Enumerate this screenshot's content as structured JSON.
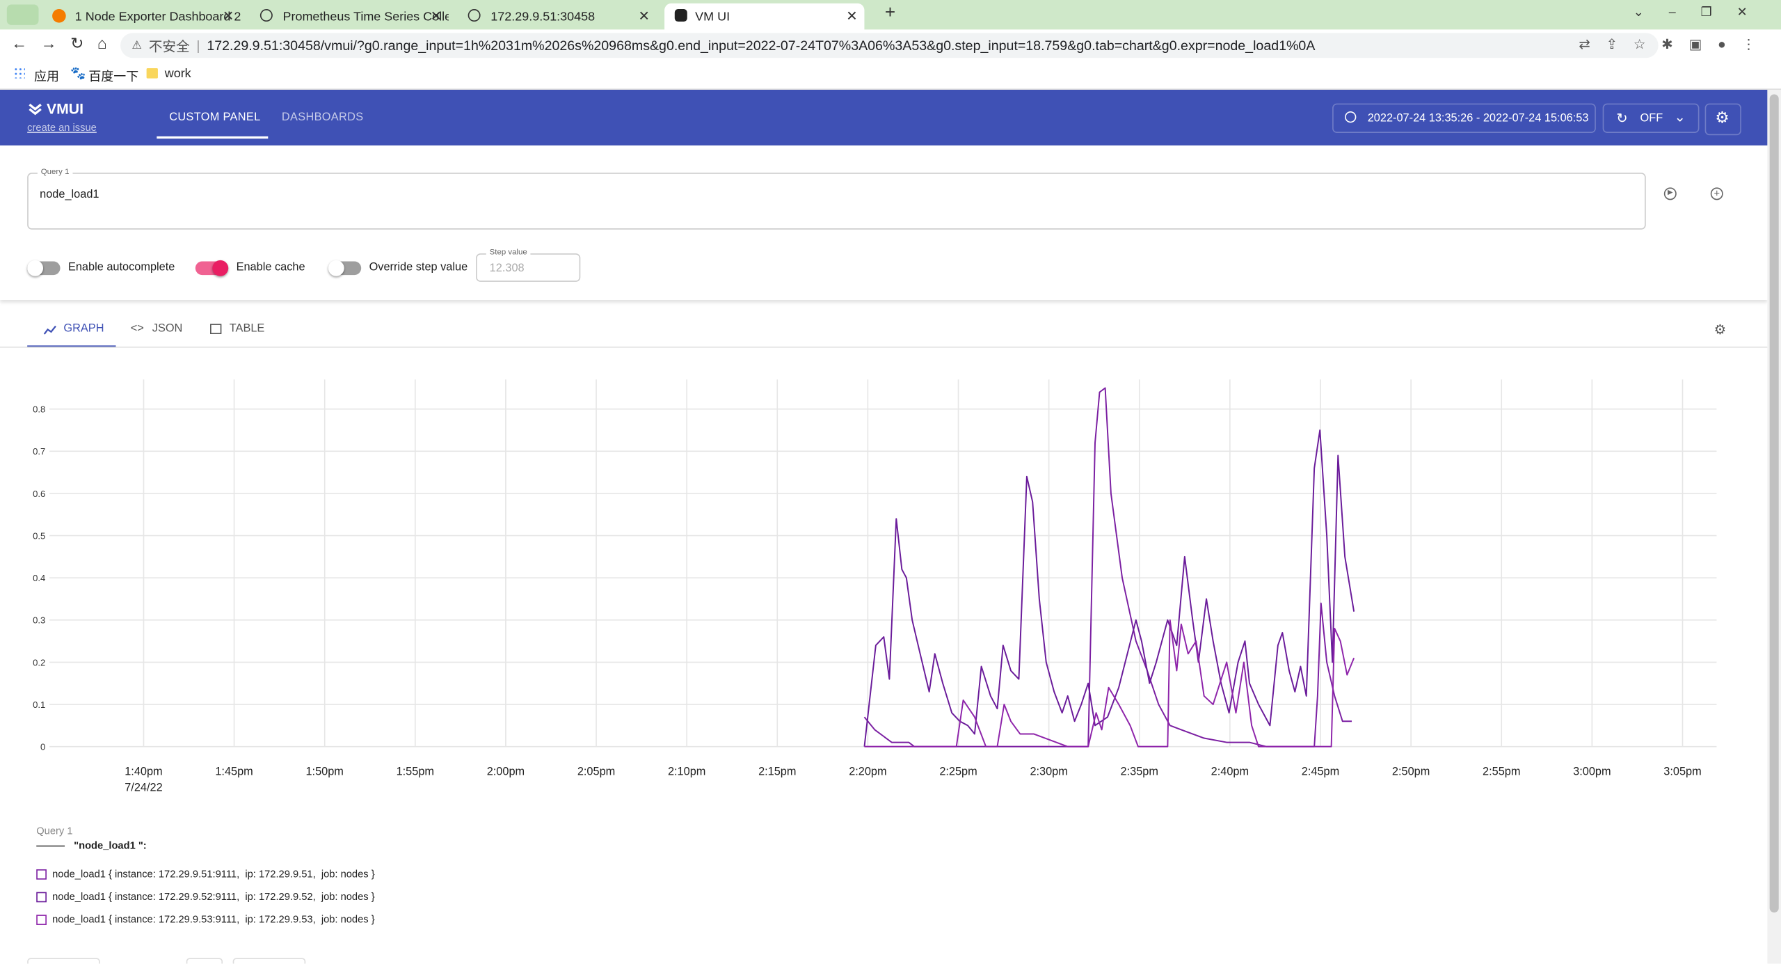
{
  "browser": {
    "tabs": [
      "1 Node Exporter Dashboard 2",
      "Prometheus Time Series Colle",
      "172.29.9.51:30458",
      "VM UI"
    ],
    "security": "不安全",
    "url": "172.29.9.51:30458/vmui/?g0.range_input=1h%2031m%2026s%20968ms&g0.end_input=2022-07-24T07%3A06%3A53&g0.step_input=18.759&g0.tab=chart&g0.expr=node_load1%0A",
    "bookmarks": [
      "应用",
      "百度一下",
      "work"
    ]
  },
  "app": {
    "logo": "VMUI",
    "issue_link": "create an issue",
    "nav": [
      "CUSTOM PANEL",
      "DASHBOARDS"
    ],
    "time_range": "2022-07-24 13:35:26 - 2022-07-24 15:06:53",
    "refresh": "OFF"
  },
  "query": {
    "label": "Query 1",
    "value": "node_load1",
    "toggles": [
      "Enable autocomplete",
      "Enable cache",
      "Override step value"
    ],
    "step_label": "Step value",
    "step_value": "12.308"
  },
  "view_tabs": [
    "GRAPH",
    "JSON",
    "TABLE"
  ],
  "legend": {
    "group": "Query 1",
    "query_label": "\"node_load1 \":"
  },
  "chart_data": {
    "type": "line",
    "x_date_label": "7/24/22",
    "xlim": [
      815.43,
      906.88
    ],
    "xticks": [
      {
        "value": 820,
        "label": "1:40pm"
      },
      {
        "value": 825,
        "label": "1:45pm"
      },
      {
        "value": 830,
        "label": "1:50pm"
      },
      {
        "value": 835,
        "label": "1:55pm"
      },
      {
        "value": 840,
        "label": "2:00pm"
      },
      {
        "value": 845,
        "label": "2:05pm"
      },
      {
        "value": 850,
        "label": "2:10pm"
      },
      {
        "value": 855,
        "label": "2:15pm"
      },
      {
        "value": 860,
        "label": "2:20pm"
      },
      {
        "value": 865,
        "label": "2:25pm"
      },
      {
        "value": 870,
        "label": "2:30pm"
      },
      {
        "value": 875,
        "label": "2:35pm"
      },
      {
        "value": 880,
        "label": "2:40pm"
      },
      {
        "value": 885,
        "label": "2:45pm"
      },
      {
        "value": 890,
        "label": "2:50pm"
      },
      {
        "value": 895,
        "label": "2:55pm"
      },
      {
        "value": 900,
        "label": "3:00pm"
      },
      {
        "value": 905,
        "label": "3:05pm"
      }
    ],
    "ylim": [
      0,
      0.87
    ],
    "yticks": [
      0,
      0.1,
      0.2,
      0.3,
      0.4,
      0.5,
      0.6,
      0.7,
      0.8
    ],
    "grid": true,
    "series": [
      {
        "name": "node_load1 { instance: 172.29.9.51:9111,  ip: 172.29.9.51,  job: nodes }",
        "color": "#7b1fa2",
        "x": [
          859.81,
          860.38,
          861.32,
          862.26,
          862.57,
          872.17,
          872.55,
          872.8,
          873.11,
          873.43,
          874.05,
          874.81,
          875.43,
          876.06,
          876.69,
          877.31,
          878.57,
          879.82,
          881.08,
          882.02,
          884.66,
          884.84,
          885.03,
          885.35,
          885.78,
          886.22,
          886.73
        ],
        "values": [
          0.07,
          0.04,
          0.01,
          0.01,
          0,
          0,
          0.72,
          0.84,
          0.85,
          0.6,
          0.4,
          0.25,
          0.18,
          0.1,
          0.05,
          0.04,
          0.02,
          0.01,
          0.01,
          0,
          0,
          0.12,
          0.34,
          0.2,
          0.12,
          0.06,
          0.06
        ]
      },
      {
        "name": "node_load1 { instance: 172.29.9.52:9111,  ip: 172.29.9.52,  job: nodes }",
        "color": "#6a1b9a",
        "x": [
          859.81,
          860.44,
          860.88,
          861.19,
          861.57,
          861.88,
          862.13,
          862.45,
          862.89,
          863.39,
          863.7,
          864.14,
          864.64,
          865.08,
          865.52,
          865.9,
          866.27,
          866.78,
          867.15,
          867.47,
          867.9,
          868.34,
          868.78,
          869.1,
          869.47,
          869.85,
          870.29,
          870.73,
          871.04,
          871.42,
          871.79,
          872.17,
          872.55,
          873.24,
          873.86,
          874.81,
          875.12,
          875.56,
          875.93,
          876.56,
          877.06,
          877.5,
          877.94,
          878.26,
          878.7,
          879.07,
          879.51,
          879.95,
          880.45,
          880.83,
          881.08,
          881.58,
          882.21,
          882.65,
          882.9,
          883.27,
          883.59,
          883.9,
          884.22,
          884.66,
          884.97,
          885.35,
          885.66,
          885.97,
          886.35,
          886.85
        ],
        "values": [
          0,
          0.24,
          0.26,
          0.16,
          0.54,
          0.42,
          0.4,
          0.3,
          0.22,
          0.13,
          0.22,
          0.15,
          0.08,
          0.06,
          0.05,
          0.03,
          0.19,
          0.12,
          0.09,
          0.24,
          0.18,
          0.16,
          0.64,
          0.58,
          0.35,
          0.2,
          0.13,
          0.08,
          0.12,
          0.06,
          0.1,
          0.15,
          0.05,
          0.07,
          0.14,
          0.3,
          0.25,
          0.15,
          0.2,
          0.3,
          0.24,
          0.45,
          0.3,
          0.2,
          0.35,
          0.25,
          0.15,
          0.08,
          0.2,
          0.25,
          0.15,
          0.1,
          0.05,
          0.24,
          0.27,
          0.18,
          0.13,
          0.19,
          0.12,
          0.66,
          0.75,
          0.5,
          0.2,
          0.69,
          0.45,
          0.32
        ]
      },
      {
        "name": "node_load1 { instance: 172.29.9.53:9111,  ip: 172.29.9.53,  job: nodes }",
        "color": "#8e24aa",
        "x": [
          859.81,
          864.89,
          865.27,
          865.9,
          866.52,
          867.15,
          867.53,
          867.9,
          868.41,
          869.16,
          869.79,
          870.41,
          871.04,
          872.17,
          872.61,
          872.92,
          873.3,
          873.86,
          874.49,
          874.93,
          876.56,
          876.69,
          877.06,
          877.31,
          877.69,
          878.13,
          878.57,
          879.07,
          879.82,
          880.33,
          880.77,
          881.2,
          881.58,
          885.6,
          885.78,
          886.1,
          886.47,
          886.85
        ],
        "values": [
          0,
          0,
          0.11,
          0.07,
          0,
          0,
          0.1,
          0.06,
          0.03,
          0.03,
          0.02,
          0.01,
          0,
          0,
          0.08,
          0.04,
          0.14,
          0.1,
          0.05,
          0,
          0,
          0.3,
          0.18,
          0.29,
          0.22,
          0.25,
          0.12,
          0.1,
          0.2,
          0.08,
          0.2,
          0.05,
          0,
          0,
          0.28,
          0.25,
          0.17,
          0.21
        ]
      }
    ]
  }
}
